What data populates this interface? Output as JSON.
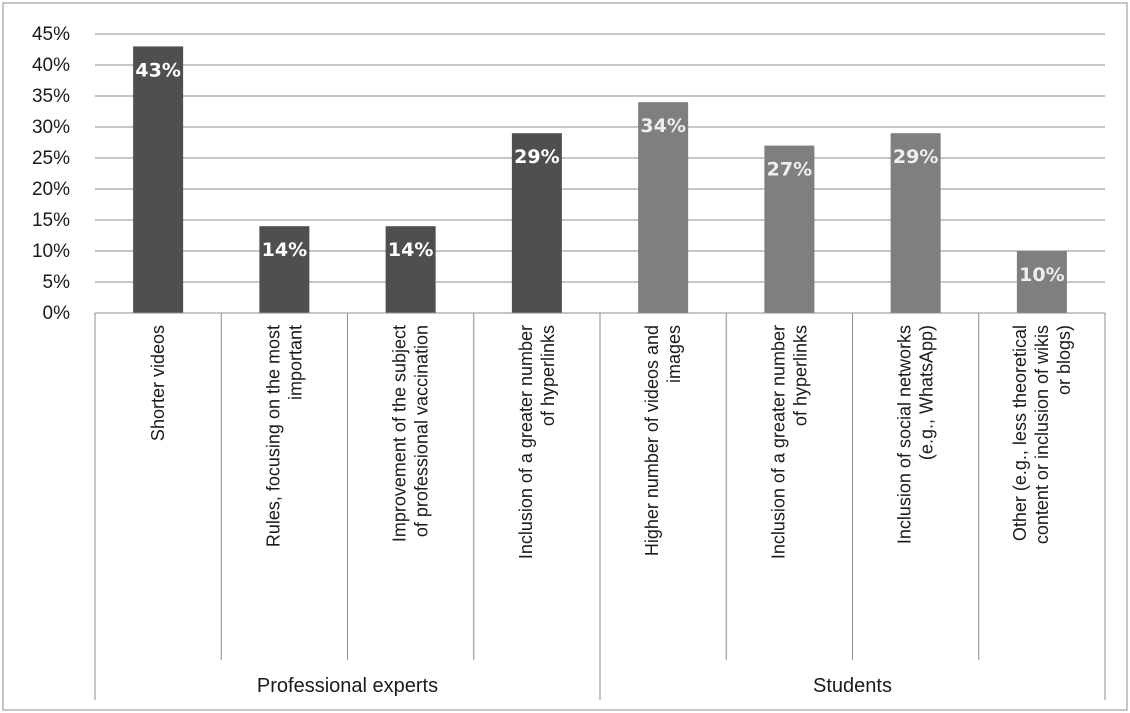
{
  "chart_data": {
    "type": "bar",
    "title": "",
    "xlabel": "",
    "ylabel": "",
    "ylim": [
      0,
      45
    ],
    "y_ticks": [
      "0%",
      "5%",
      "10%",
      "15%",
      "20%",
      "25%",
      "30%",
      "35%",
      "40%",
      "45%"
    ],
    "grid": true,
    "legend": "none",
    "groups": [
      {
        "name": "Professional experts",
        "color": "#4f4f4f",
        "label_color": "#ffffff",
        "categories": [
          [
            "Shorter videos"
          ],
          [
            "Rules, focusing on the most",
            "important"
          ],
          [
            "Improvement of the subject",
            "of professional vaccination"
          ],
          [
            "Inclusion of a greater number",
            "of hyperlinks"
          ]
        ],
        "values": [
          43,
          14,
          14,
          29
        ],
        "labels": [
          "43%",
          "14%",
          "14%",
          "29%"
        ]
      },
      {
        "name": "Students",
        "color": "#7f7f7f",
        "label_color": "#eeeeee",
        "categories": [
          [
            "Higher number of videos and",
            "images"
          ],
          [
            "Inclusion of a greater number",
            "of hyperlinks"
          ],
          [
            "Inclusion of social networks",
            "(e.g., WhatsApp)"
          ],
          [
            "Other (e.g., less theoretical",
            "content or inclusion of wikis",
            "or blogs)"
          ]
        ],
        "values": [
          34,
          27,
          29,
          10
        ],
        "labels": [
          "34%",
          "27%",
          "29%",
          "10%"
        ]
      }
    ]
  }
}
